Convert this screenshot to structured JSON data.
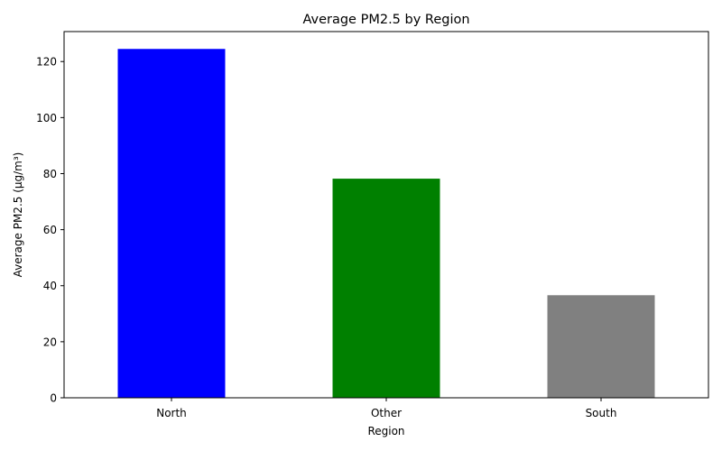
{
  "chart_data": {
    "type": "bar",
    "title": "Average PM2.5 by Region",
    "xlabel": "Region",
    "ylabel": "Average PM2.5 (μg/m³)",
    "categories": [
      "North",
      "Other",
      "South"
    ],
    "values": [
      124.5,
      78.2,
      36.6
    ],
    "colors": [
      "#0000ff",
      "#008000",
      "#808080"
    ],
    "ylim": [
      0,
      130.7
    ],
    "yticks": [
      0,
      20,
      40,
      60,
      80,
      100,
      120
    ],
    "grid": false,
    "legend": "none"
  }
}
